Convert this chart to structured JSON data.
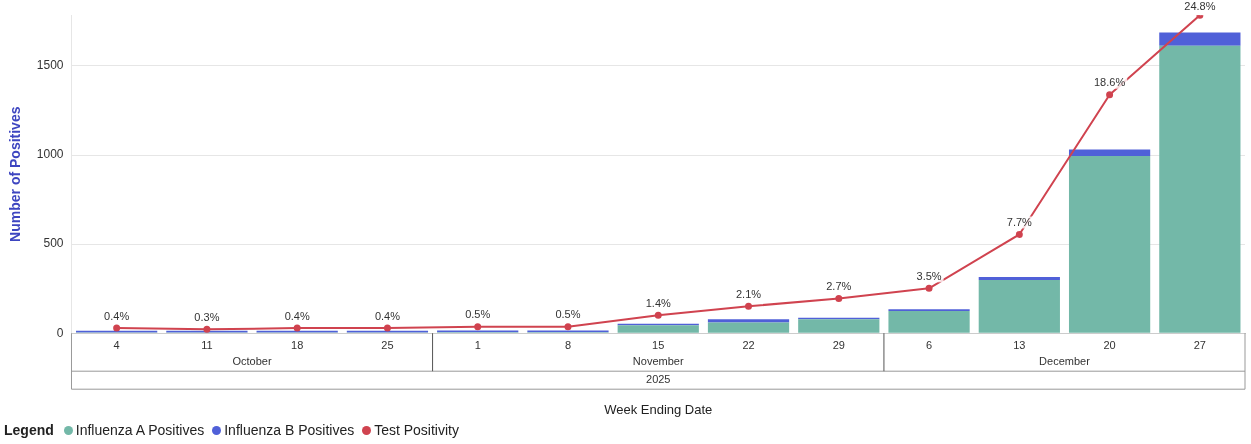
{
  "chart_data": {
    "type": "bar",
    "stacked": true,
    "xlabel": "Week Ending Date",
    "ylabel": "Number of Positives",
    "legend_title": "Legend",
    "legend": "bottom left",
    "grid": "y",
    "categories": [
      "4",
      "11",
      "18",
      "25",
      "1",
      "8",
      "15",
      "22",
      "29",
      "6",
      "13",
      "20",
      "27"
    ],
    "annotations": [
      "October",
      "November",
      "December",
      "2025"
    ],
    "ylim": [
      0,
      1785
    ],
    "yticks": [
      0,
      500,
      1000,
      1500
    ],
    "series": [
      {
        "name": "Influenza A Positives",
        "color": "#73b8a8",
        "values": [
          4,
          4,
          4,
          4,
          5,
          5,
          45,
          60,
          78,
          125,
          298,
          994,
          1613
        ]
      },
      {
        "name": "Influenza B Positives",
        "color": "#5060d8",
        "values": [
          10,
          10,
          10,
          10,
          10,
          10,
          8,
          18,
          9,
          9,
          17,
          37,
          75
        ]
      },
      {
        "name": "Test Positivity",
        "type": "line",
        "axis": "y2",
        "color": "#d0434f",
        "marker": "circle",
        "values": [
          0.4,
          0.3,
          0.4,
          0.4,
          0.5,
          0.5,
          1.4,
          2.1,
          2.7,
          3.5,
          7.7,
          18.6,
          24.8
        ],
        "value_labels": [
          "0.4%",
          "0.3%",
          "0.4%",
          "0.4%",
          "0.5%",
          "0.5%",
          "1.4%",
          "2.1%",
          "2.7%",
          "3.5%",
          "7.7%",
          "18.6%",
          "24.8%"
        ]
      }
    ]
  }
}
